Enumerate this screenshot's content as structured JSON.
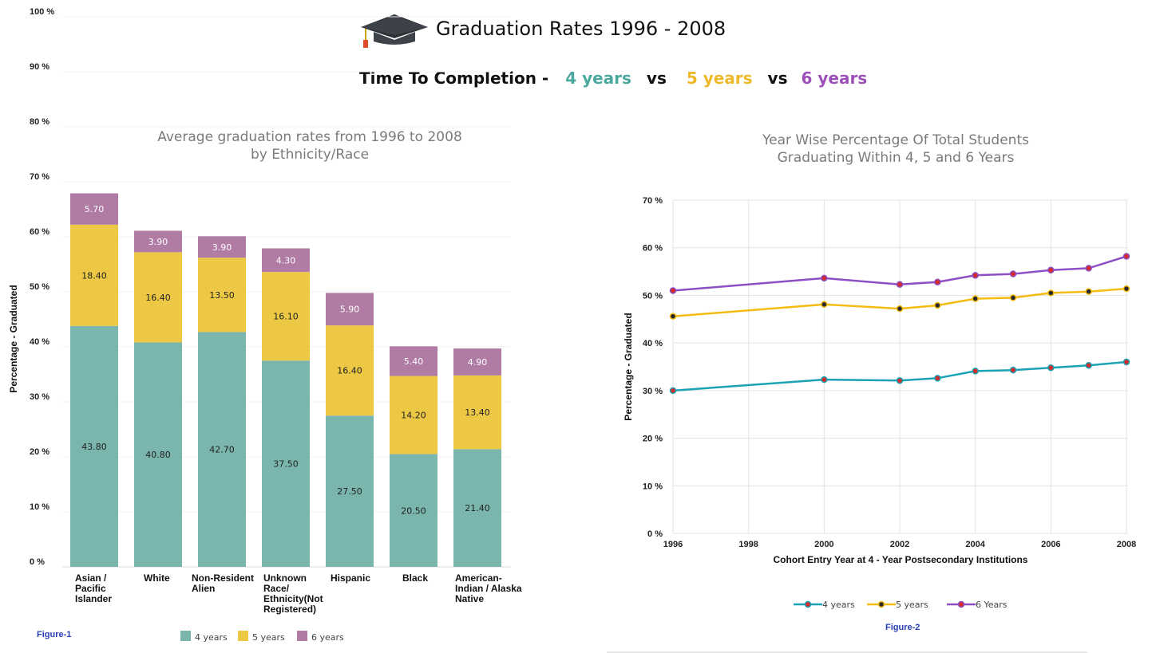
{
  "header": {
    "title": "Graduation Rates 1996 - 2008",
    "subtitle_prefix": "Time To Completion -",
    "vs": "vs",
    "series_4": "4 years",
    "series_5": "5 years",
    "series_6": "6 years"
  },
  "colors": {
    "teal": "#7ab5ae",
    "yellow": "#ecc844",
    "mauve": "#b07ca4",
    "line4": "#1aa3b5",
    "line5": "#f4bc10",
    "line6": "#8e4fc6",
    "marker": "#d42a2a",
    "sub4": "#4aa89f",
    "sub5": "#edb92a",
    "sub6": "#9b4fb8"
  },
  "figure1_caption": "Figure-1",
  "figure2_caption": "Figure-2",
  "chart_data": [
    {
      "type": "bar",
      "stacked": true,
      "title": "Average graduation rates from 1996 to 2008\nby Ethnicity/Race",
      "ylabel": "Percentage  -  Graduated",
      "ylim": [
        0,
        100
      ],
      "yticks": [
        "0 %",
        "10 %",
        "20 %",
        "30 %",
        "40 %",
        "50 %",
        "60 %",
        "70 %",
        "80 %",
        "90 %",
        "100 %"
      ],
      "categories": [
        "Asian /\nPacific\nIslander",
        "White",
        "Non-Resident\nAlien",
        "Unknown\nRace/\nEthnicity(Not\nRegistered)",
        "Hispanic",
        "Black",
        "American-\nIndian / Alaska\nNative"
      ],
      "series": [
        {
          "name": "4 years",
          "values": [
            43.8,
            40.8,
            42.7,
            37.5,
            27.5,
            20.5,
            21.4
          ],
          "labels": [
            "43.80",
            "40.80",
            "42.70",
            "37.50",
            "27.50",
            "20.50",
            "21.40"
          ]
        },
        {
          "name": "5 years",
          "values": [
            18.4,
            16.4,
            13.5,
            16.1,
            16.4,
            14.2,
            13.4
          ],
          "labels": [
            "18.40",
            "16.40",
            "13.50",
            "16.10",
            "16.40",
            "14.20",
            "13.40"
          ]
        },
        {
          "name": "6 years",
          "values": [
            5.7,
            3.9,
            3.9,
            4.3,
            5.9,
            5.4,
            4.9
          ],
          "labels": [
            "5.70",
            "3.90",
            "3.90",
            "4.30",
            "5.90",
            "5.40",
            "4.90"
          ]
        }
      ],
      "legend": "bottom"
    },
    {
      "type": "line",
      "title": "Year Wise Percentage Of Total Students\nGraduating Within 4, 5 and 6 Years",
      "xlabel": "Cohort Entry  Year at 4 - Year Postsecondary Institutions",
      "ylabel": "Percentage  -  Graduated",
      "xlim": [
        1996,
        2008
      ],
      "ylim": [
        0,
        70
      ],
      "xticks": [
        "1996",
        "1998",
        "2000",
        "2002",
        "2004",
        "2006",
        "2008"
      ],
      "yticks": [
        "0 %",
        "10 %",
        "20 %",
        "30 %",
        "40 %",
        "50 %",
        "60 %",
        "70 %"
      ],
      "x": [
        1996,
        2000,
        2002,
        2003,
        2004,
        2005,
        2006,
        2007,
        2008
      ],
      "series": [
        {
          "name": "4 years",
          "values": [
            30.0,
            32.3,
            32.1,
            32.6,
            34.1,
            34.3,
            34.8,
            35.3,
            36.0
          ]
        },
        {
          "name": "5 years",
          "values": [
            45.6,
            48.1,
            47.2,
            47.9,
            49.3,
            49.5,
            50.5,
            50.8,
            51.4
          ]
        },
        {
          "name": "6 Years",
          "values": [
            51.0,
            53.6,
            52.3,
            52.8,
            54.2,
            54.5,
            55.3,
            55.7,
            58.2
          ]
        }
      ],
      "grid": true,
      "legend": "bottom"
    }
  ]
}
